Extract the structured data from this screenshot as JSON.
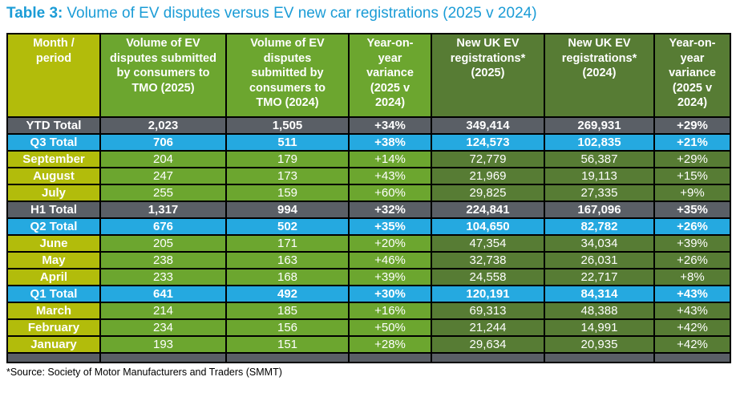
{
  "title": {
    "prefix": "Table 3:",
    "rest": "Volume of EV disputes versus EV new car registrations (2025 v 2024)"
  },
  "footnote": "*Source: Society of Motor Manufacturers and Traders (SMMT)",
  "colors": {
    "title_blue": "#1B9CD6",
    "yellow_green": "#B2BC0B",
    "medium_green": "#6CA62F",
    "dark_green": "#577C34",
    "slate_gray": "#5A5F66",
    "cyan_row": "#25A9E0",
    "border": "#000000",
    "cell_text": "#FFFFFF"
  },
  "chart_data": {
    "type": "table",
    "title": "Table 3: Volume of EV disputes versus EV new car registrations (2025 v 2024)",
    "columns": [
      "Month / period",
      "Volume of EV disputes submitted by consumers to TMO (2025)",
      "Volume of EV disputes submitted by consumers to TMO (2024)",
      "Year-on-year variance (2025 v 2024)",
      "New UK EV registrations* (2025)",
      "New UK EV registrations* (2024)",
      "Year-on-year variance (2025 v 2024)"
    ],
    "rows": [
      {
        "label": "YTD Total",
        "style": "total-gray",
        "values": [
          "2,023",
          "1,505",
          "+34%",
          "349,414",
          "269,931",
          "+29%"
        ]
      },
      {
        "label": "Q3 Total",
        "style": "total-cyan",
        "values": [
          "706",
          "511",
          "+38%",
          "124,573",
          "102,835",
          "+21%"
        ]
      },
      {
        "label": "September",
        "style": "month",
        "values": [
          "204",
          "179",
          "+14%",
          "72,779",
          "56,387",
          "+29%"
        ]
      },
      {
        "label": "August",
        "style": "month",
        "values": [
          "247",
          "173",
          "+43%",
          "21,969",
          "19,113",
          "+15%"
        ]
      },
      {
        "label": "July",
        "style": "month",
        "values": [
          "255",
          "159",
          "+60%",
          "29,825",
          "27,335",
          "+9%"
        ]
      },
      {
        "label": "H1 Total",
        "style": "total-gray",
        "values": [
          "1,317",
          "994",
          "+32%",
          "224,841",
          "167,096",
          "+35%"
        ]
      },
      {
        "label": "Q2 Total",
        "style": "total-cyan",
        "values": [
          "676",
          "502",
          "+35%",
          "104,650",
          "82,782",
          "+26%"
        ]
      },
      {
        "label": "June",
        "style": "month",
        "values": [
          "205",
          "171",
          "+20%",
          "47,354",
          "34,034",
          "+39%"
        ]
      },
      {
        "label": "May",
        "style": "month",
        "values": [
          "238",
          "163",
          "+46%",
          "32,738",
          "26,031",
          "+26%"
        ]
      },
      {
        "label": "April",
        "style": "month",
        "values": [
          "233",
          "168",
          "+39%",
          "24,558",
          "22,717",
          "+8%"
        ]
      },
      {
        "label": "Q1 Total",
        "style": "total-cyan",
        "values": [
          "641",
          "492",
          "+30%",
          "120,191",
          "84,314",
          "+43%"
        ]
      },
      {
        "label": "March",
        "style": "month",
        "values": [
          "214",
          "185",
          "+16%",
          "69,313",
          "48,388",
          "+43%"
        ]
      },
      {
        "label": "February",
        "style": "month",
        "values": [
          "234",
          "156",
          "+50%",
          "21,244",
          "14,991",
          "+42%"
        ]
      },
      {
        "label": "January",
        "style": "month",
        "values": [
          "193",
          "151",
          "+28%",
          "29,634",
          "20,935",
          "+42%"
        ]
      }
    ],
    "footer_row": {
      "style": "empty-gray",
      "values": [
        "",
        "",
        "",
        "",
        "",
        "",
        ""
      ]
    }
  }
}
